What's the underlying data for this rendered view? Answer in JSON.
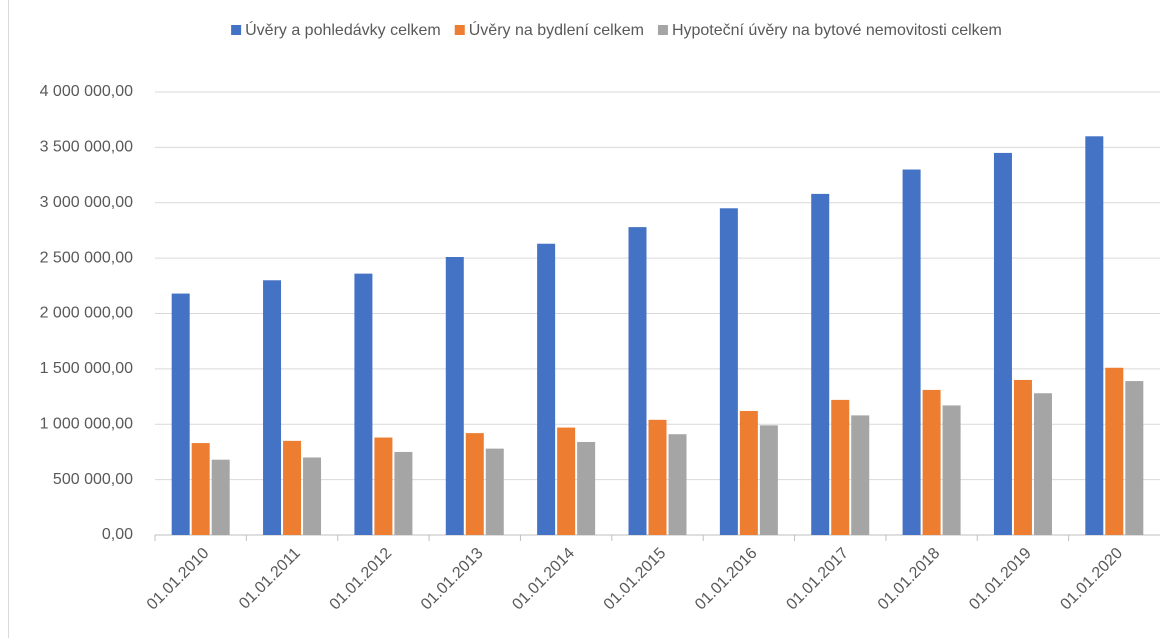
{
  "chart_data": {
    "type": "bar",
    "categories": [
      "01.01.2010",
      "01.01.2011",
      "01.01.2012",
      "01.01.2013",
      "01.01.2014",
      "01.01.2015",
      "01.01.2016",
      "01.01.2017",
      "01.01.2018",
      "01.01.2019",
      "01.01.2020"
    ],
    "series": [
      {
        "name": "Úvěry a pohledávky celkem",
        "color": "#4472c4",
        "values": [
          2180000,
          2300000,
          2360000,
          2510000,
          2630000,
          2780000,
          2950000,
          3080000,
          3300000,
          3450000,
          3600000
        ]
      },
      {
        "name": "Úvěry na bydlení celkem",
        "color": "#ed7d31",
        "values": [
          830000,
          850000,
          880000,
          920000,
          970000,
          1040000,
          1120000,
          1220000,
          1310000,
          1400000,
          1510000
        ]
      },
      {
        "name": "Hypoteční úvěry na bytové nemovitosti celkem",
        "color": "#a5a5a5",
        "values": [
          680000,
          700000,
          750000,
          780000,
          840000,
          910000,
          990000,
          1080000,
          1170000,
          1280000,
          1390000
        ]
      }
    ],
    "ylim": [
      0,
      4000000
    ],
    "yticks": [
      {
        "value": 0,
        "label": "0,00"
      },
      {
        "value": 500000,
        "label": "500 000,00"
      },
      {
        "value": 1000000,
        "label": "1 000 000,00"
      },
      {
        "value": 1500000,
        "label": "1 500 000,00"
      },
      {
        "value": 2000000,
        "label": "2 000 000,00"
      },
      {
        "value": 2500000,
        "label": "2 500 000,00"
      },
      {
        "value": 3000000,
        "label": "3 000 000,00"
      },
      {
        "value": 3500000,
        "label": "3 500 000,00"
      },
      {
        "value": 4000000,
        "label": "4 000 000,00"
      }
    ],
    "grid": true,
    "legend": "top"
  }
}
